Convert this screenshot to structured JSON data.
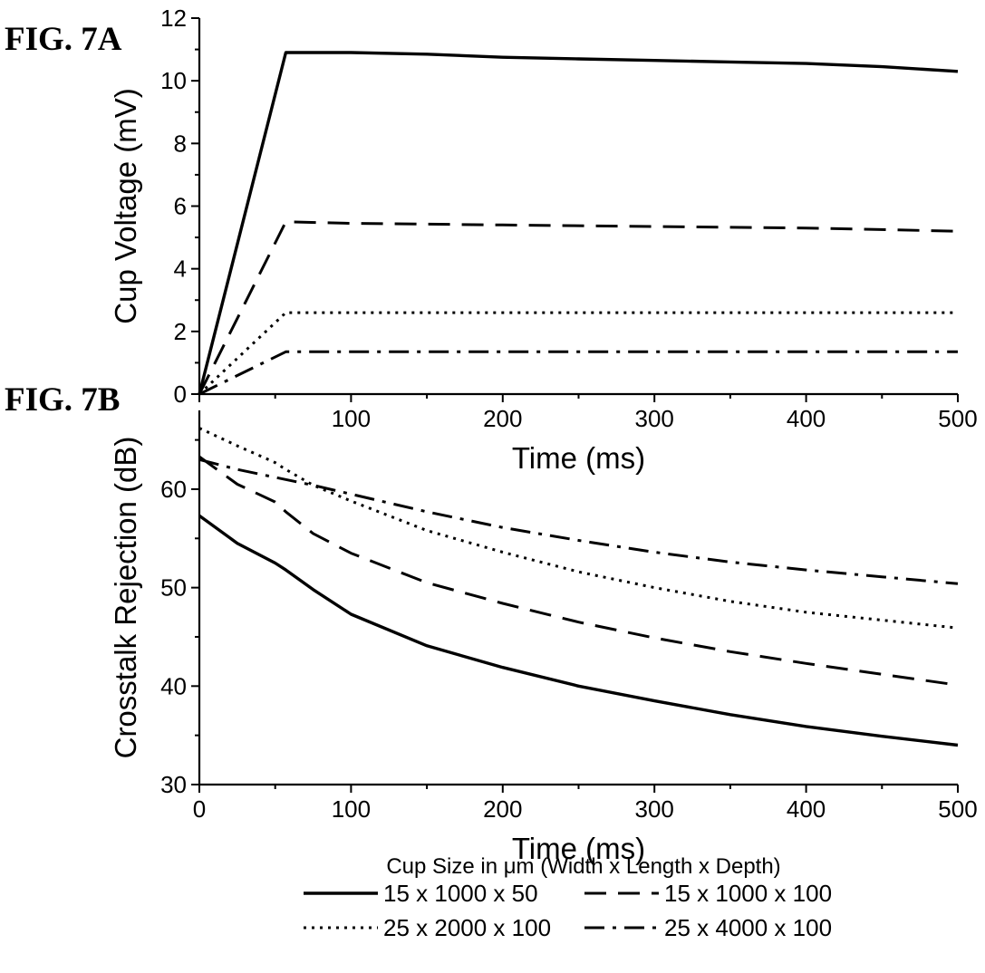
{
  "figure": {
    "legend_title": "Cup Size in μm (Width x Length x Depth)"
  },
  "chart_data": [
    {
      "id": "A",
      "panel_label": "FIG. 7A",
      "type": "line",
      "title": "",
      "xlabel": "Time (ms)",
      "ylabel": "Cup Voltage (mV)",
      "xlim": [
        0,
        500
      ],
      "ylim": [
        0,
        12
      ],
      "xticks": [
        100,
        200,
        300,
        400,
        500
      ],
      "yticks": [
        0,
        2,
        4,
        6,
        8,
        10,
        12
      ],
      "grid": false,
      "series": [
        {
          "name": "15 x 1000 x 50",
          "style": "solid",
          "color": "#000000",
          "x": [
            0,
            57,
            100,
            150,
            200,
            250,
            300,
            350,
            400,
            450,
            500
          ],
          "y": [
            0,
            10.9,
            10.9,
            10.85,
            10.75,
            10.7,
            10.65,
            10.6,
            10.55,
            10.45,
            10.3
          ]
        },
        {
          "name": "15 x 1000 x 100",
          "style": "dash",
          "color": "#000000",
          "x": [
            0,
            57,
            100,
            200,
            300,
            400,
            500
          ],
          "y": [
            0,
            5.5,
            5.45,
            5.4,
            5.35,
            5.3,
            5.2
          ]
        },
        {
          "name": "25 x 2000 x 100",
          "style": "dot",
          "color": "#000000",
          "x": [
            0,
            57,
            100,
            200,
            300,
            400,
            500
          ],
          "y": [
            0,
            2.6,
            2.6,
            2.6,
            2.6,
            2.6,
            2.6
          ]
        },
        {
          "name": "25 x 4000 x 100",
          "style": "dashdot",
          "color": "#000000",
          "x": [
            0,
            57,
            100,
            200,
            300,
            400,
            500
          ],
          "y": [
            0,
            1.35,
            1.35,
            1.35,
            1.35,
            1.35,
            1.35
          ]
        }
      ]
    },
    {
      "id": "B",
      "panel_label": "FIG. 7B",
      "type": "line",
      "title": "",
      "xlabel": "Time  (ms)",
      "ylabel": "Crosstalk Rejection (dB)",
      "xlim": [
        0,
        500
      ],
      "ylim": [
        30,
        68
      ],
      "xticks": [
        0,
        100,
        200,
        300,
        400,
        500
      ],
      "yticks": [
        30,
        40,
        50,
        60
      ],
      "grid": false,
      "series": [
        {
          "name": "15 x 1000 x 50",
          "style": "solid",
          "color": "#000000",
          "x": [
            0,
            25,
            50,
            57,
            75,
            100,
            150,
            200,
            250,
            300,
            350,
            400,
            450,
            500
          ],
          "y": [
            57.3,
            54.5,
            52.5,
            51.8,
            49.8,
            47.3,
            44.1,
            41.9,
            40.0,
            38.5,
            37.1,
            35.9,
            34.9,
            34.0
          ]
        },
        {
          "name": "15 x 1000 x 100",
          "style": "dash",
          "color": "#000000",
          "x": [
            0,
            25,
            50,
            57,
            75,
            100,
            150,
            200,
            250,
            300,
            350,
            400,
            450,
            500
          ],
          "y": [
            63.3,
            60.5,
            58.7,
            57.7,
            55.5,
            53.5,
            50.5,
            48.4,
            46.5,
            44.9,
            43.5,
            42.3,
            41.2,
            40.1
          ]
        },
        {
          "name": "25 x 2000 x 100",
          "style": "dot",
          "color": "#000000",
          "x": [
            0,
            25,
            50,
            57,
            75,
            100,
            150,
            200,
            250,
            300,
            350,
            400,
            450,
            500
          ],
          "y": [
            66.2,
            64.4,
            62.7,
            62.0,
            60.4,
            58.8,
            55.8,
            53.6,
            51.6,
            50.0,
            48.6,
            47.5,
            46.7,
            45.9
          ]
        },
        {
          "name": "25 x 4000 x 100",
          "style": "dashdot",
          "color": "#000000",
          "x": [
            0,
            25,
            50,
            75,
            100,
            150,
            200,
            250,
            300,
            350,
            400,
            450,
            500
          ],
          "y": [
            63.0,
            62.0,
            61.2,
            60.4,
            59.5,
            57.7,
            56.1,
            54.8,
            53.6,
            52.6,
            51.8,
            51.1,
            50.4
          ]
        }
      ]
    }
  ]
}
